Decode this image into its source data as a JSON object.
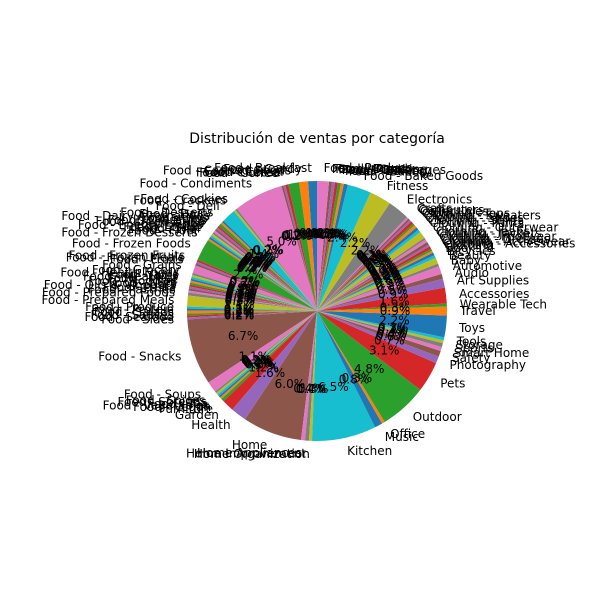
{
  "chart_data": {
    "type": "pie",
    "title": "Distribución de ventas por categoría",
    "start_angle": 90,
    "direction": "counterclockwise",
    "colors": [
      "#1f77b4",
      "#ff7f0e",
      "#2ca02c",
      "#d62728",
      "#9467bd",
      "#8c564b",
      "#e377c2",
      "#7f7f7f",
      "#bcbd22",
      "#17becf"
    ],
    "slices": [
      {
        "label": "Food - Breakfast",
        "value": 0.9,
        "pct": "0.9%"
      },
      {
        "label": "Food - Candy",
        "value": 0.9,
        "pct": "0.9%"
      },
      {
        "label": "Food - Canned Goods",
        "value": 1.1,
        "pct": "1.1%"
      },
      {
        "label": "Food - Cereal",
        "value": 0.3,
        "pct": "0.3%"
      },
      {
        "label": "Food - Cheese",
        "value": 0.2,
        "pct": "0.2%"
      },
      {
        "label": "Food - Coffee",
        "value": 0.2,
        "pct": "0.2%"
      },
      {
        "label": "Food - Condiments",
        "value": 5.0,
        "pct": "5.0%"
      },
      {
        "label": "Food - Cookies",
        "value": 0.2,
        "pct": "0.2%"
      },
      {
        "label": "Food - Crackers",
        "value": 0.2,
        "pct": "0.2%"
      },
      {
        "label": "Food - Deli",
        "value": 1.4,
        "pct": "1.4%"
      },
      {
        "label": "Food - Desserts",
        "value": 0.2,
        "pct": "0.2%"
      },
      {
        "label": "Food - Dairy",
        "value": 0.2,
        "pct": "0.2%"
      },
      {
        "label": "Food - Dairy Alternatives",
        "value": 0.3,
        "pct": "0.3%"
      },
      {
        "label": "Food - Dips",
        "value": 0.2,
        "pct": "0.2%"
      },
      {
        "label": "Food - Dressings",
        "value": 0.2,
        "pct": "0.2%"
      },
      {
        "label": "Food - Dried Fruits",
        "value": 0.2,
        "pct": "0.2%"
      },
      {
        "label": "Food - Eggs",
        "value": 0.2,
        "pct": "0.2%"
      },
      {
        "label": "Food - Energy Drinks",
        "value": 0.2,
        "pct": "0.2%"
      },
      {
        "label": "Food - Ethnic",
        "value": 0.2,
        "pct": "0.2%"
      },
      {
        "label": "Food - Fish",
        "value": 0.2,
        "pct": "0.2%"
      },
      {
        "label": "Food - Flour",
        "value": 0.2,
        "pct": "0.2%"
      },
      {
        "label": "Food - Frozen Desserts",
        "value": 0.2,
        "pct": "0.2%"
      },
      {
        "label": "Food - Frozen Foods",
        "value": 2.2,
        "pct": "2.2%"
      },
      {
        "label": "Food - Frozen Fruits",
        "value": 0.2,
        "pct": "0.2%"
      },
      {
        "label": "Food - Frozen Meals",
        "value": 0.2,
        "pct": "0.2%"
      },
      {
        "label": "Food - Fruits",
        "value": 0.2,
        "pct": "0.2%"
      },
      {
        "label": "Food - Grains",
        "value": 0.8,
        "pct": "0.8%"
      },
      {
        "label": "Food - Grocery",
        "value": 0.2,
        "pct": "0.2%"
      },
      {
        "label": "Food - Health Foods",
        "value": 0.2,
        "pct": "0.2%"
      },
      {
        "label": "Food - Jams",
        "value": 0.2,
        "pct": "0.2%"
      },
      {
        "label": "Food - Meal Kits",
        "value": 0.2,
        "pct": "0.2%"
      },
      {
        "label": "Food - Meat",
        "value": 0.2,
        "pct": "0.2%"
      },
      {
        "label": "Food - Noodles",
        "value": 0.2,
        "pct": "0.2%"
      },
      {
        "label": "Food - Nuts",
        "value": 0.2,
        "pct": "0.2%"
      },
      {
        "label": "Food - Oils & Vinegars",
        "value": 0.2,
        "pct": "0.2%"
      },
      {
        "label": "Food - Pasta",
        "value": 0.2,
        "pct": "0.2%"
      },
      {
        "label": "Food - Pastries",
        "value": 0.2,
        "pct": "0.2%"
      },
      {
        "label": "Food - Prepared Foods",
        "value": 0.3,
        "pct": "0.3%"
      },
      {
        "label": "Food - Prepared Meals",
        "value": 1.1,
        "pct": "1.1%"
      },
      {
        "label": "Food - Produce",
        "value": 0.2,
        "pct": "0.2%"
      },
      {
        "label": "Food - Protein",
        "value": 0.2,
        "pct": "0.2%"
      },
      {
        "label": "Food - Salads",
        "value": 0.3,
        "pct": "0.3%"
      },
      {
        "label": "Food - Sauces",
        "value": 0.2,
        "pct": "0.2%"
      },
      {
        "label": "Food - Seafood",
        "value": 0.2,
        "pct": "0.2%"
      },
      {
        "label": "Food - Sides",
        "value": 0.2,
        "pct": "0.2%"
      },
      {
        "label": "Food - Snacks",
        "value": 6.7,
        "pct": "6.7%"
      },
      {
        "label": "Food - Soups",
        "value": 1.1,
        "pct": "1.1%"
      },
      {
        "label": "Food - Spices",
        "value": 0.2,
        "pct": "0.2%"
      },
      {
        "label": "Food - Spreads",
        "value": 0.2,
        "pct": "0.2%"
      },
      {
        "label": "Food - Tea",
        "value": 0.2,
        "pct": "0.2%"
      },
      {
        "label": "Food - Vegetables",
        "value": 0.2,
        "pct": "0.2%"
      },
      {
        "label": "Food - Vegan",
        "value": 0.2,
        "pct": "0.2%"
      },
      {
        "label": "Furniture",
        "value": 0.3,
        "pct": "0.3%"
      },
      {
        "label": "Garden",
        "value": 1.2,
        "pct": "1.2%"
      },
      {
        "label": "Health",
        "value": 1.6,
        "pct": "1.6%"
      },
      {
        "label": "Home",
        "value": 6.0,
        "pct": "6.0%"
      },
      {
        "label": "Home Appliances",
        "value": 0.4,
        "pct": "0.4%"
      },
      {
        "label": "Home Improvement",
        "value": 0.4,
        "pct": "0.4%"
      },
      {
        "label": "Home Organization",
        "value": 0.3,
        "pct": "0.3%"
      },
      {
        "label": "Kitchen",
        "value": 6.5,
        "pct": "6.5%"
      },
      {
        "label": "Music",
        "value": 0.8,
        "pct": "0.8%"
      },
      {
        "label": "Office",
        "value": 0.3,
        "pct": "0.3%"
      },
      {
        "label": "Outdoor",
        "value": 4.8,
        "pct": "4.8%"
      },
      {
        "label": "Pets",
        "value": 3.1,
        "pct": "3.1%"
      },
      {
        "label": "Photography",
        "value": 0.7,
        "pct": "0.7%"
      },
      {
        "label": "Safety",
        "value": 0.6,
        "pct": "0.6%"
      },
      {
        "label": "Smart Home",
        "value": 0.4,
        "pct": "0.4%"
      },
      {
        "label": "Sports",
        "value": 0.4,
        "pct": "0.4%"
      },
      {
        "label": "Storage",
        "value": 0.3,
        "pct": "0.3%"
      },
      {
        "label": "Tools",
        "value": 0.3,
        "pct": "0.3%"
      },
      {
        "label": "Toys",
        "value": 2.2,
        "pct": "2.2%"
      },
      {
        "label": "Travel",
        "value": 0.9,
        "pct": "0.9%"
      },
      {
        "label": "Wearable Tech",
        "value": 0.3,
        "pct": "0.3%"
      },
      {
        "label": "Accessories",
        "value": 1.6,
        "pct": "1.6%"
      },
      {
        "label": "Art Supplies",
        "value": 0.9,
        "pct": "0.9%"
      },
      {
        "label": "Audio",
        "value": 0.5,
        "pct": "0.5%"
      },
      {
        "label": "Automotive",
        "value": 0.8,
        "pct": "0.8%"
      },
      {
        "label": "Baby",
        "value": 0.3,
        "pct": "0.3%"
      },
      {
        "label": "Beauty",
        "value": 0.6,
        "pct": "0.6%"
      },
      {
        "label": "Bicycles",
        "value": 0.3,
        "pct": "0.3%"
      },
      {
        "label": "Books",
        "value": 0.3,
        "pct": "0.3%"
      },
      {
        "label": "Clothing",
        "value": 0.2,
        "pct": "0.2%"
      },
      {
        "label": "Clothing - Accessories",
        "value": 0.2,
        "pct": "0.2%"
      },
      {
        "label": "Clothing - Activewear",
        "value": 0.3,
        "pct": "0.3%"
      },
      {
        "label": "Clothing - Dresses",
        "value": 0.2,
        "pct": "0.2%"
      },
      {
        "label": "Clothing - Footwear",
        "value": 0.3,
        "pct": "0.3%"
      },
      {
        "label": "Clothing - Jackets",
        "value": 0.3,
        "pct": "0.3%"
      },
      {
        "label": "Clothing - Jeans",
        "value": 0.2,
        "pct": "0.2%"
      },
      {
        "label": "Clothing - Outerwear",
        "value": 0.7,
        "pct": "0.7%"
      },
      {
        "label": "Clothing - Pants",
        "value": 0.3,
        "pct": "0.3%"
      },
      {
        "label": "Clothing - Shirts",
        "value": 0.3,
        "pct": "0.3%"
      },
      {
        "label": "Clothing - Shoes",
        "value": 0.3,
        "pct": "0.3%"
      },
      {
        "label": "Clothing - Sweaters",
        "value": 0.2,
        "pct": "0.2%"
      },
      {
        "label": "Clothing - Tops",
        "value": 0.3,
        "pct": "0.3%"
      },
      {
        "label": "Collectibles",
        "value": 0.2,
        "pct": "0.2%"
      },
      {
        "label": "Computers",
        "value": 0.2,
        "pct": "0.2%"
      },
      {
        "label": "Crafts",
        "value": 0.2,
        "pct": "0.2%"
      },
      {
        "label": "Electronics",
        "value": 2.2,
        "pct": "2.2%"
      },
      {
        "label": "Fitness",
        "value": 2.2,
        "pct": "2.2%"
      },
      {
        "label": "Food - Baked Goods",
        "value": 2.4,
        "pct": "2.4%"
      },
      {
        "label": "Food - Bakery",
        "value": 0.4,
        "pct": "0.4%"
      },
      {
        "label": "Food - Baking",
        "value": 0.3,
        "pct": "0.3%"
      },
      {
        "label": "Food - Beverages",
        "value": 0.3,
        "pct": "0.3%"
      },
      {
        "label": "Food - Cooking",
        "value": 0.3,
        "pct": "0.3%"
      },
      {
        "label": "Food - Pantry",
        "value": 0.3,
        "pct": "0.3%"
      },
      {
        "label": "Food - Bread",
        "value": 0.3,
        "pct": "0.3%"
      },
      {
        "label": "Food - Produce",
        "value": 1.2,
        "pct": "1.2%"
      }
    ]
  }
}
